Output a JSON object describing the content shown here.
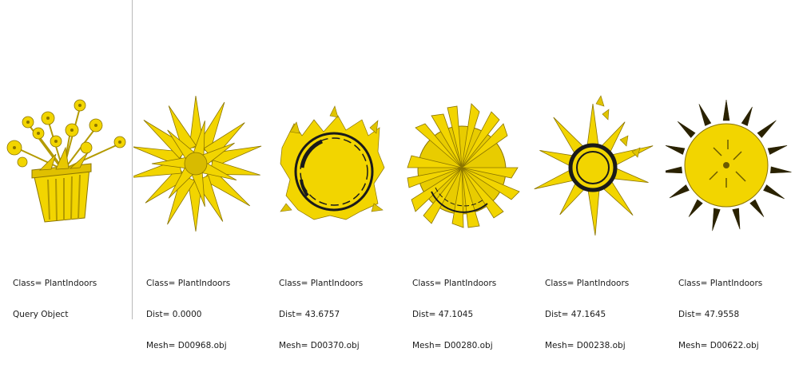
{
  "colors": {
    "shape": "#f2d500",
    "shape_dark": "#8a7400",
    "ink": "#1a1a1a",
    "divider": "#b9b9b9"
  },
  "query": {
    "class_line": "Class= PlantIndoors",
    "label": "Query Object",
    "icon": "potted-flower-plant-render"
  },
  "results": [
    {
      "class_line": "Class= PlantIndoors",
      "dist_line": "Dist= 0.0000",
      "mesh_line": "Mesh= D00968.obj",
      "icon": "spiky-star-plant-render"
    },
    {
      "class_line": "Class= PlantIndoors",
      "dist_line": "Dist= 43.6757",
      "mesh_line": "Mesh= D00370.obj",
      "icon": "round-bowl-plant-render"
    },
    {
      "class_line": "Class= PlantIndoors",
      "dist_line": "Dist= 47.1045",
      "mesh_line": "Mesh= D00280.obj",
      "icon": "leafy-bush-plant-render"
    },
    {
      "class_line": "Class= PlantIndoors",
      "dist_line": "Dist= 47.1645",
      "mesh_line": "Mesh= D00238.obj",
      "icon": "ringed-pot-plant-render"
    },
    {
      "class_line": "Class= PlantIndoors",
      "dist_line": "Dist= 47.9558",
      "mesh_line": "Mesh= D00622.obj",
      "icon": "spiked-disc-plant-render"
    }
  ]
}
